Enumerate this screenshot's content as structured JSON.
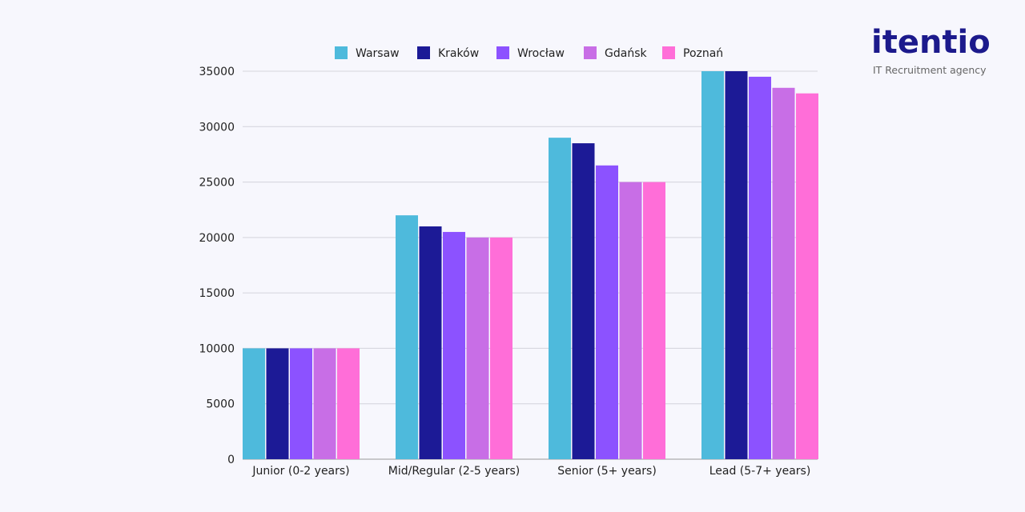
{
  "brand": {
    "name": "itentio",
    "tagline": "IT Recruitment agency",
    "color": "#1c1a8c",
    "accent": "#4ebadc"
  },
  "chart_data": {
    "type": "bar",
    "categories": [
      "Junior (0-2 years)",
      "Mid/Regular (2-5 years)",
      "Senior (5+ years)",
      "Lead (5-7+ years)"
    ],
    "series": [
      {
        "name": "Warsaw",
        "color": "#4ebadc",
        "values": [
          10000,
          22000,
          29000,
          35000
        ]
      },
      {
        "name": "Kraków",
        "color": "#1c1a96",
        "values": [
          10000,
          21000,
          28500,
          35000
        ]
      },
      {
        "name": "Wrocław",
        "color": "#8c52ff",
        "values": [
          10000,
          20500,
          26500,
          34500
        ]
      },
      {
        "name": "Gdańsk",
        "color": "#c86ee6",
        "values": [
          10000,
          20000,
          25000,
          33500
        ]
      },
      {
        "name": "Poznań",
        "color": "#ff6ed8",
        "values": [
          10000,
          20000,
          25000,
          33000
        ]
      }
    ],
    "yticks": [
      0,
      5000,
      10000,
      15000,
      20000,
      25000,
      30000,
      35000
    ],
    "ylim": [
      0,
      35000
    ],
    "grid": true,
    "legend": "top"
  }
}
